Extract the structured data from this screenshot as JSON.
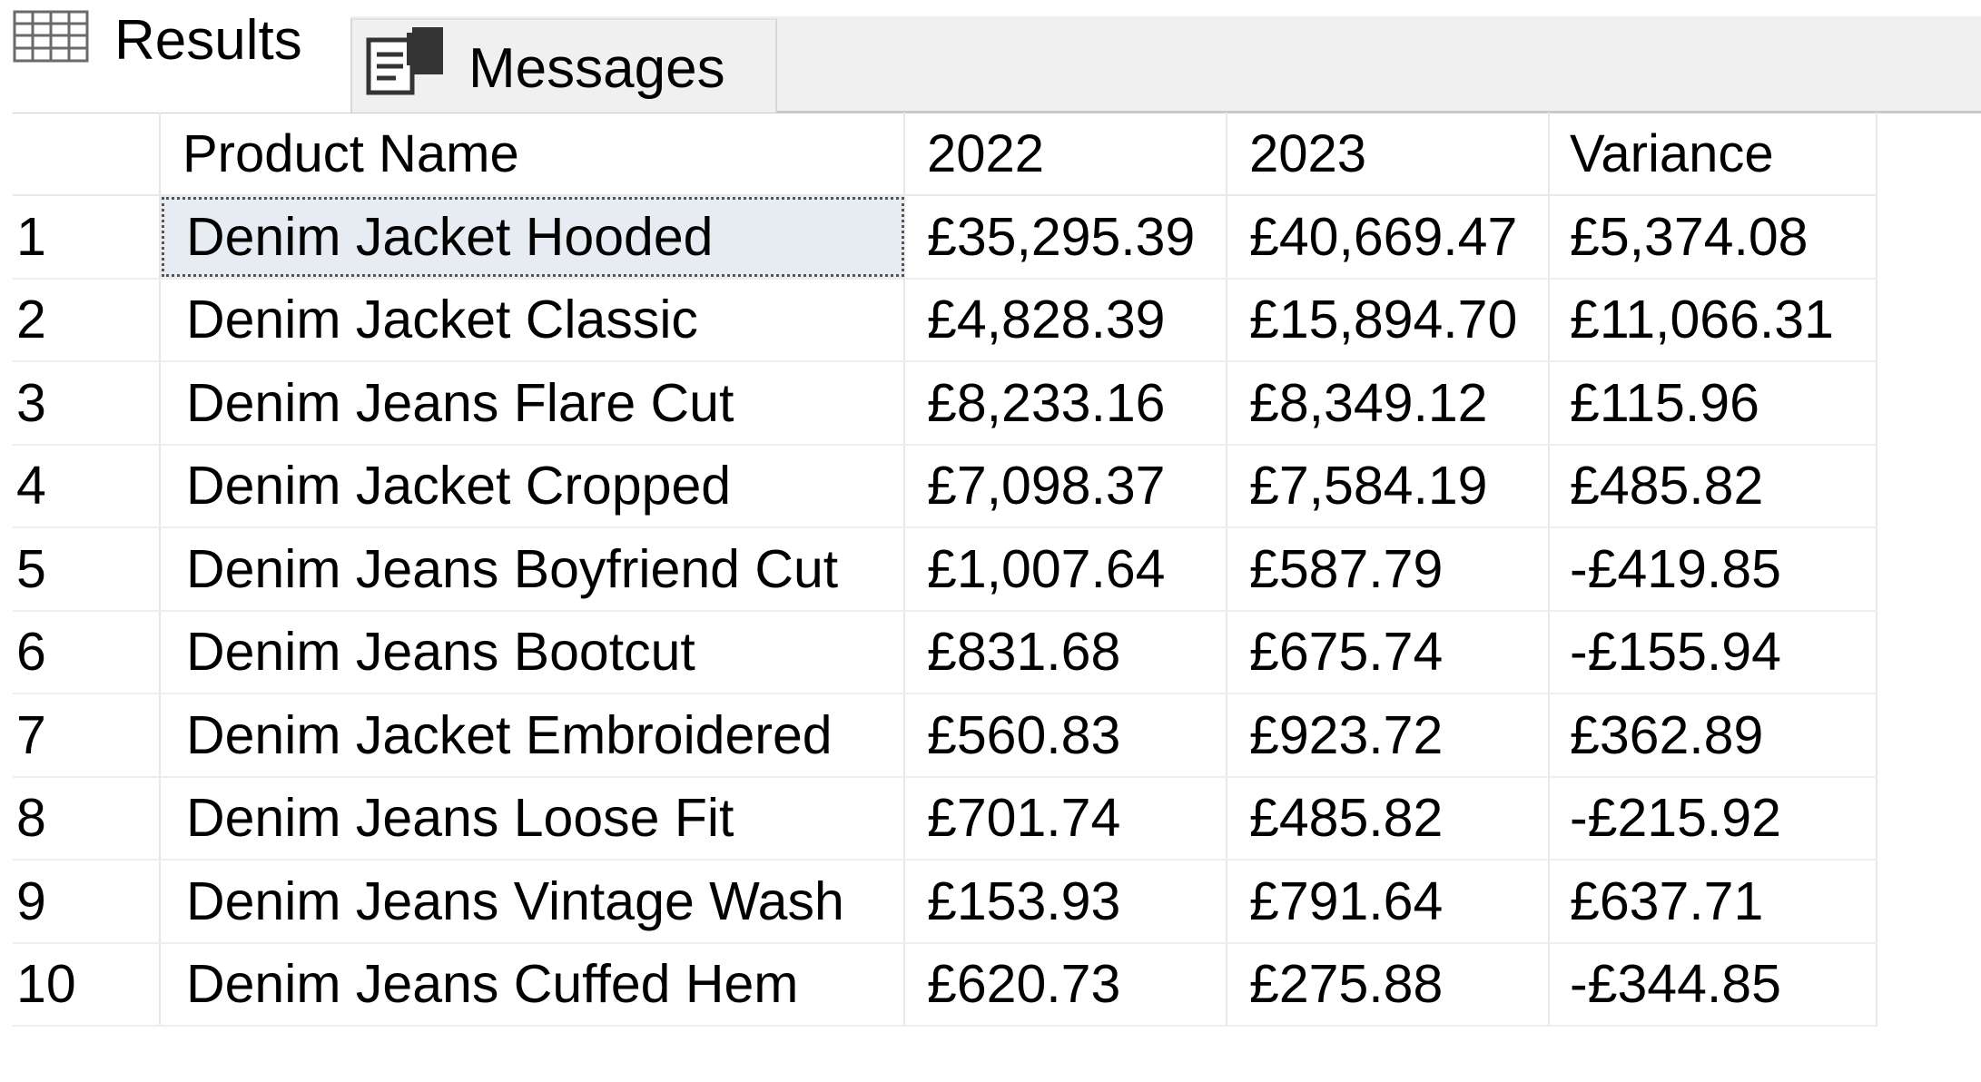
{
  "tabs": {
    "results": {
      "label": "Results",
      "icon": "grid-icon"
    },
    "messages": {
      "label": "Messages",
      "icon": "messages-icon"
    }
  },
  "grid": {
    "columns": [
      "",
      "Product Name",
      "2022",
      "2023",
      "Variance"
    ],
    "rows": [
      {
        "num": "1",
        "name": "Denim Jacket Hooded",
        "y2022": "£35,295.39",
        "y2023": "£40,669.47",
        "variance": "£5,374.08"
      },
      {
        "num": "2",
        "name": "Denim Jacket Classic",
        "y2022": "£4,828.39",
        "y2023": "£15,894.70",
        "variance": "£11,066.31"
      },
      {
        "num": "3",
        "name": "Denim Jeans Flare Cut",
        "y2022": "£8,233.16",
        "y2023": "£8,349.12",
        "variance": "£115.96"
      },
      {
        "num": "4",
        "name": "Denim Jacket Cropped",
        "y2022": "£7,098.37",
        "y2023": "£7,584.19",
        "variance": "£485.82"
      },
      {
        "num": "5",
        "name": "Denim Jeans Boyfriend Cut",
        "y2022": "£1,007.64",
        "y2023": "£587.79",
        "variance": "-£419.85"
      },
      {
        "num": "6",
        "name": "Denim Jeans Bootcut",
        "y2022": "£831.68",
        "y2023": "£675.74",
        "variance": "-£155.94"
      },
      {
        "num": "7",
        "name": "Denim Jacket Embroidered",
        "y2022": "£560.83",
        "y2023": "£923.72",
        "variance": "£362.89"
      },
      {
        "num": "8",
        "name": "Denim Jeans Loose Fit",
        "y2022": "£701.74",
        "y2023": "£485.82",
        "variance": "-£215.92"
      },
      {
        "num": "9",
        "name": "Denim Jeans Vintage Wash",
        "y2022": "£153.93",
        "y2023": "£791.64",
        "variance": "£637.71"
      },
      {
        "num": "10",
        "name": "Denim Jeans Cuffed Hem",
        "y2022": "£620.73",
        "y2023": "£275.88",
        "variance": "-£344.85"
      }
    ]
  }
}
